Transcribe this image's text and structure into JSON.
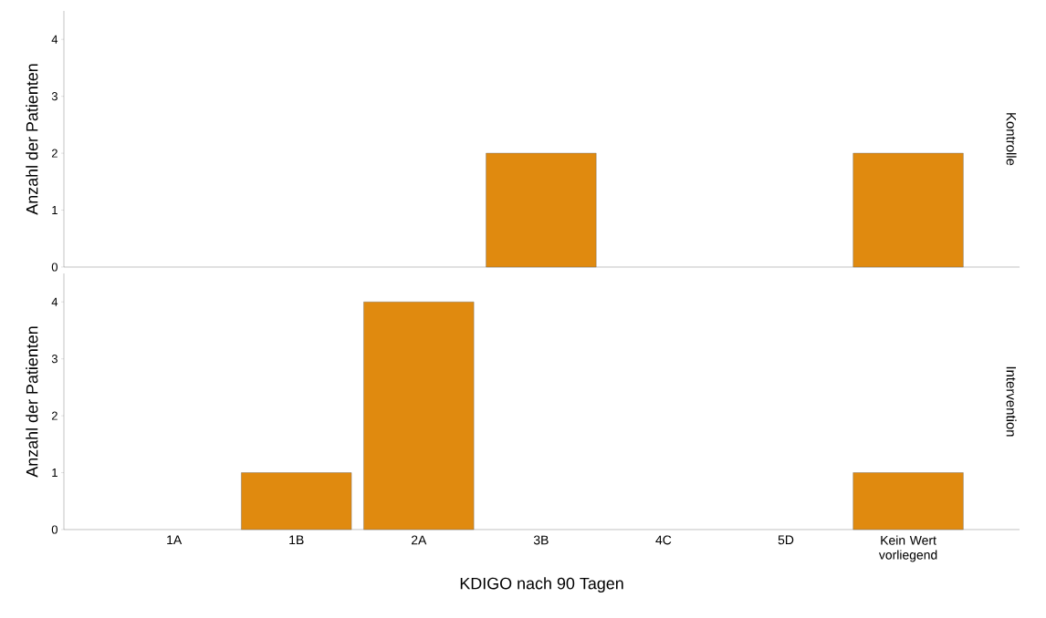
{
  "chart_data": [
    {
      "type": "bar",
      "categories": [
        null,
        null,
        null,
        null,
        null,
        null,
        null
      ],
      "values": [
        0,
        0,
        0,
        2,
        0,
        0,
        2
      ],
      "color": "#e08a0f",
      "ylim": [
        0,
        4.5
      ],
      "yticks": [
        0,
        1,
        2,
        3,
        4
      ],
      "ylabel": "Anzahl der Patienten",
      "y2label": "Kontrolle",
      "tick_labels": "y"
    },
    {
      "type": "bar",
      "categories": [
        "1A",
        "1B",
        "2A",
        "3B",
        "4C",
        "5D",
        "Kein Wert vorliegend"
      ],
      "values": [
        0,
        1,
        4,
        0,
        0,
        0,
        1
      ],
      "color": "#e08a0f",
      "ylim": [
        0,
        4.5
      ],
      "yticks": [
        0,
        1,
        2,
        3,
        4
      ],
      "ylabel": "Anzahl der Patienten",
      "y2label": "Intervention",
      "xlabel": "KDIGO nach 90 Tagen"
    }
  ]
}
